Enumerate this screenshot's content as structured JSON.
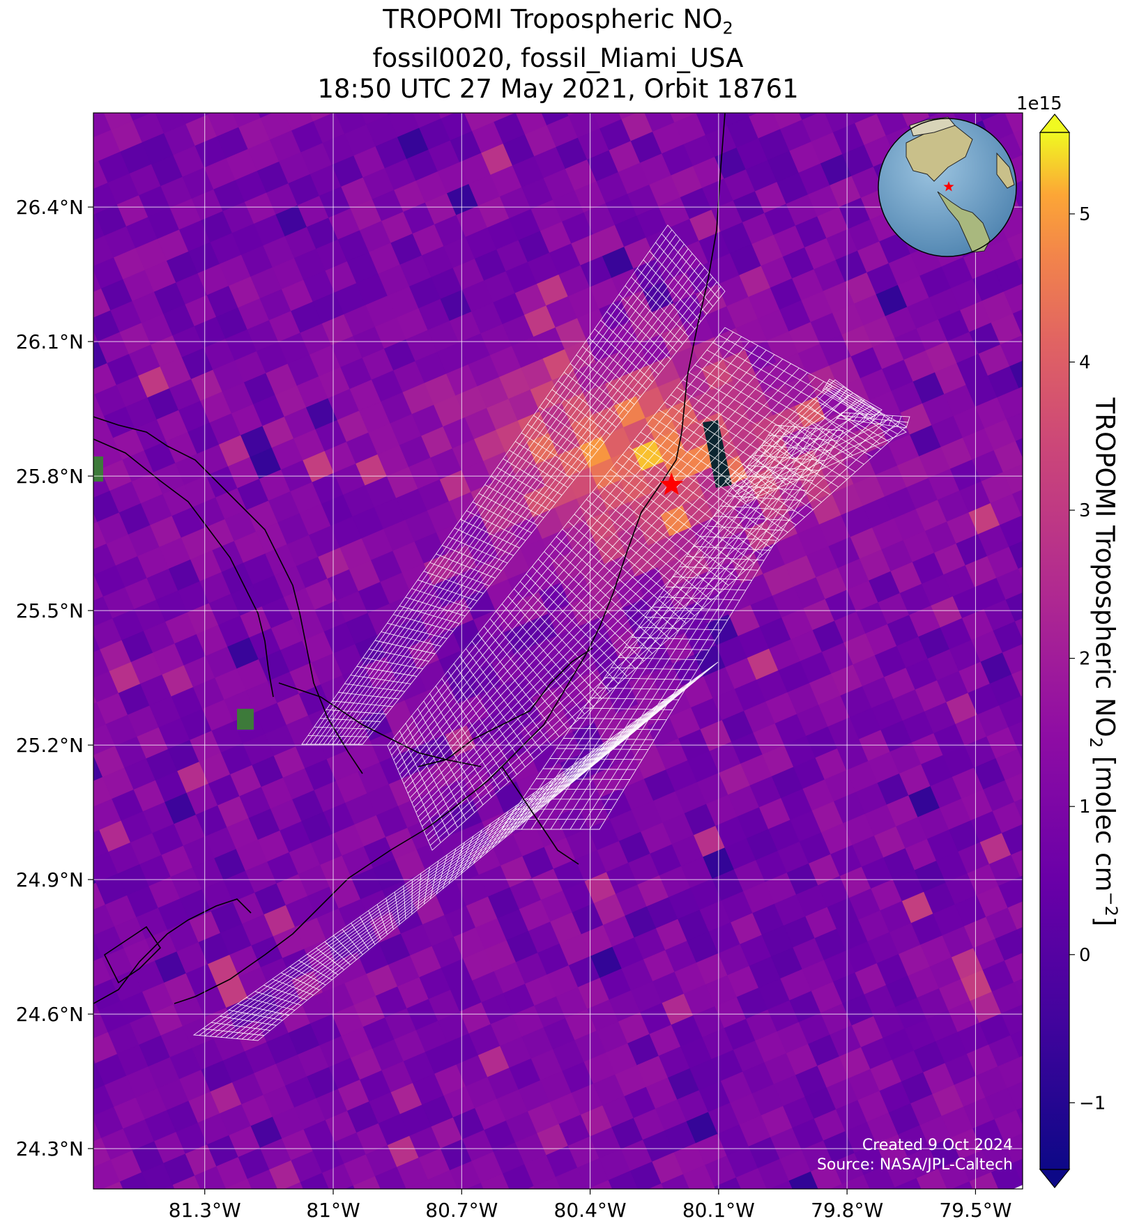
{
  "title": {
    "line1_prefix": "TROPOMI Tropospheric NO",
    "line1_sub": "2",
    "line2": "fossil0020, fossil_Miami_USA",
    "line3": "18:50 UTC 27 May 2021, Orbit 18761"
  },
  "map": {
    "lon_range": [
      -81.56,
      -79.39
    ],
    "lat_range": [
      24.21,
      26.61
    ],
    "lon_ticks": [
      {
        "value": -81.3,
        "label": "81.3°W"
      },
      {
        "value": -81.0,
        "label": "81°W"
      },
      {
        "value": -80.7,
        "label": "80.7°W"
      },
      {
        "value": -80.4,
        "label": "80.4°W"
      },
      {
        "value": -80.1,
        "label": "80.1°W"
      },
      {
        "value": -79.8,
        "label": "79.8°W"
      },
      {
        "value": -79.5,
        "label": "79.5°W"
      }
    ],
    "lat_ticks": [
      {
        "value": 26.4,
        "label": "26.4°N"
      },
      {
        "value": 26.1,
        "label": "26.1°N"
      },
      {
        "value": 25.8,
        "label": "25.8°N"
      },
      {
        "value": 25.5,
        "label": "25.5°N"
      },
      {
        "value": 25.2,
        "label": "25.2°N"
      },
      {
        "value": 24.9,
        "label": "24.9°N"
      },
      {
        "value": 24.6,
        "label": "24.6°N"
      },
      {
        "value": 24.3,
        "label": "24.3°N"
      }
    ],
    "target_marker": {
      "name": "red-star",
      "lon": -80.21,
      "lat": 25.78,
      "color": "#ff0000"
    },
    "plume_center": {
      "lon": -80.3,
      "lat": 25.86
    },
    "colormap": "plasma",
    "inset": {
      "type": "globe",
      "marker_color": "#ff0000"
    }
  },
  "colorbar": {
    "label_prefix": "TROPOMI Tropospheric NO",
    "label_sub": "2",
    "label_mid": " [molec cm",
    "label_sup": "−2",
    "label_suffix": "]",
    "exponent_label": "1e15",
    "range": [
      -1.45,
      5.55
    ],
    "extend": "both",
    "ticks": [
      {
        "value": -1,
        "label": "−1"
      },
      {
        "value": 0,
        "label": "0"
      },
      {
        "value": 1,
        "label": "1"
      },
      {
        "value": 2,
        "label": "2"
      },
      {
        "value": 3,
        "label": "3"
      },
      {
        "value": 4,
        "label": "4"
      },
      {
        "value": 5,
        "label": "5"
      }
    ]
  },
  "credits": {
    "created": "Created 9 Oct 2024",
    "source": "Source: NASA/JPL-Caltech"
  }
}
